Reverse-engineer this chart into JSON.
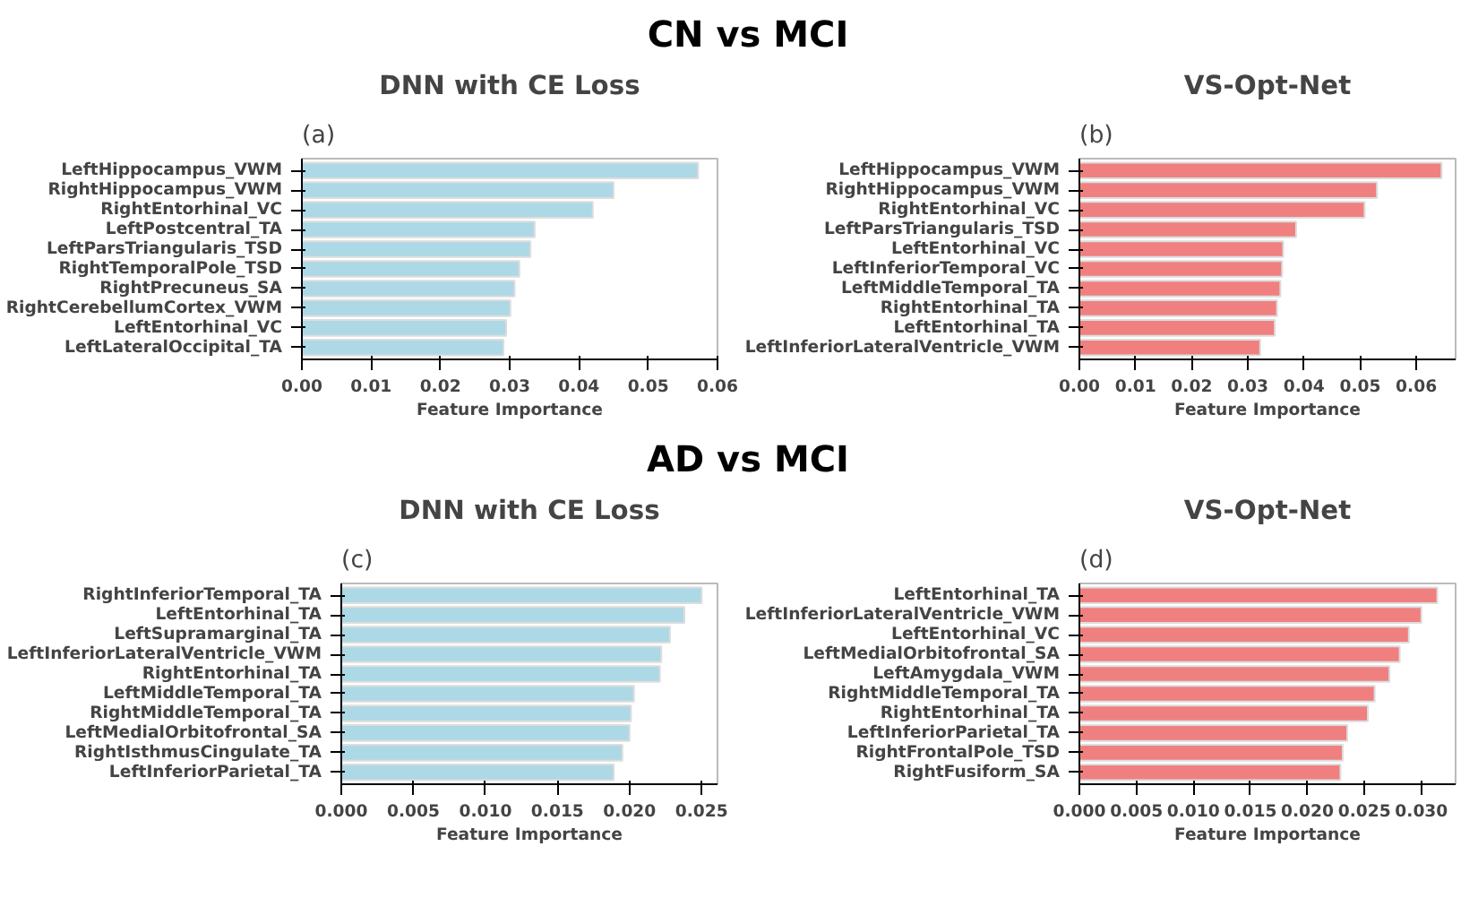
{
  "chart_data": [
    {
      "type": "bar",
      "orientation": "horizontal",
      "title": "DNN with CE Loss",
      "xlabel": "Feature Importance",
      "annotations": [
        "(a)",
        "CN vs MCI"
      ],
      "categories": [
        "LeftHippocampus_VWM",
        "RightHippocampus_VWM",
        "RightEntorhinal_VC",
        "LeftPostcentral_TA",
        "LeftParsTriangularis_TSD",
        "RightTemporalPole_TSD",
        "RightPrecuneus_SA",
        "RightCerebellumCortex_VWM",
        "LeftEntorhinal_VC",
        "LeftLateralOccipital_TA"
      ],
      "values": [
        0.0572,
        0.045,
        0.042,
        0.0336,
        0.033,
        0.0314,
        0.0307,
        0.0301,
        0.0295,
        0.0291
      ],
      "color": "#add8e6",
      "xlim": [
        0,
        0.06
      ],
      "xticks": [
        {
          "value": 0,
          "label": "0.00"
        },
        0.01,
        0.02,
        0.03,
        0.04,
        0.05,
        {
          "value": 0.06,
          "label": "0.06"
        }
      ],
      "grid": false,
      "legend": false
    },
    {
      "type": "bar",
      "orientation": "horizontal",
      "title": "VS-Opt-Net",
      "xlabel": "Feature Importance",
      "annotations": [
        "(b)"
      ],
      "categories": [
        "LeftHippocampus_VWM",
        "RightHippocampus_VWM",
        "RightEntorhinal_VC",
        "LeftParsTriangularis_TSD",
        "LeftEntorhinal_VC",
        "LeftInferiorTemporal_VC",
        "LeftMiddleTemporal_TA",
        "RightEntorhinal_TA",
        "LeftEntorhinal_TA",
        "LeftInferiorLateralVentricle_VWM"
      ],
      "values": [
        0.0645,
        0.053,
        0.0508,
        0.0386,
        0.0363,
        0.0361,
        0.0358,
        0.0352,
        0.0348,
        0.0322
      ],
      "color": "#f08080",
      "xlim": [
        0,
        0.067
      ],
      "xticks": [
        {
          "value": 0,
          "label": "0.00"
        },
        0.01,
        0.02,
        0.03,
        0.04,
        0.05,
        0.06
      ],
      "grid": false,
      "legend": false
    },
    {
      "type": "bar",
      "orientation": "horizontal",
      "title": "DNN with CE Loss",
      "xlabel": "Feature Importance",
      "annotations": [
        "(c)",
        "AD vs MCI"
      ],
      "categories": [
        "RightInferiorTemporal_TA",
        "LeftEntorhinal_TA",
        "LeftSupramarginal_TA",
        "LeftInferiorLateralVentricle_VWM",
        "RightEntorhinal_TA",
        "LeftMiddleTemporal_TA",
        "RightMiddleTemporal_TA",
        "LeftMedialOrbitofrontal_SA",
        "RightIsthmusCingulate_TA",
        "LeftInferiorParietal_TA"
      ],
      "values": [
        0.025,
        0.0238,
        0.0228,
        0.0222,
        0.0221,
        0.0203,
        0.0201,
        0.02,
        0.0195,
        0.0189
      ],
      "color": "#add8e6",
      "xlim": [
        0,
        0.0261
      ],
      "xticks": [
        {
          "value": 0,
          "label": "0.000"
        },
        0.005,
        {
          "value": 0.01,
          "label": "0.010"
        },
        0.015,
        {
          "value": 0.02,
          "label": "0.020"
        },
        0.025
      ],
      "grid": false,
      "legend": false
    },
    {
      "type": "bar",
      "orientation": "horizontal",
      "title": "VS-Opt-Net",
      "xlabel": "Feature Importance",
      "annotations": [
        "(d)"
      ],
      "categories": [
        "LeftEntorhinal_TA",
        "LeftInferiorLateralVentricle_VWM",
        "LeftEntorhinal_VC",
        "LeftMedialOrbitofrontal_SA",
        "LeftAmygdala_VWM",
        "RightMiddleTemporal_TA",
        "RightEntorhinal_TA",
        "LeftInferiorParietal_TA",
        "RightFrontalPole_TSD",
        "RightFusiform_SA"
      ],
      "values": [
        0.0314,
        0.03,
        0.0289,
        0.0281,
        0.0272,
        0.0259,
        0.0253,
        0.0235,
        0.0231,
        0.0229
      ],
      "color": "#f08080",
      "xlim": [
        0,
        0.033
      ],
      "xticks": [
        {
          "value": 0,
          "label": "0.000"
        },
        0.005,
        {
          "value": 0.01,
          "label": "0.010"
        },
        0.015,
        {
          "value": 0.02,
          "label": "0.020"
        },
        0.025,
        {
          "value": 0.03,
          "label": "0.030"
        }
      ],
      "grid": false,
      "legend": false
    }
  ]
}
